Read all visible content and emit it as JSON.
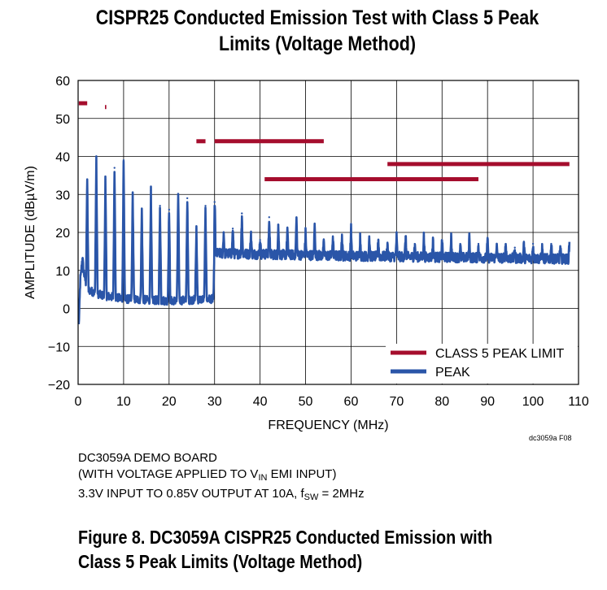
{
  "chart_data": {
    "type": "line",
    "title_line1": "CISPR25 Conducted Emission Test with Class 5 Peak",
    "title_line2": "Limits (Voltage Method)",
    "xlabel": "FREQUENCY (MHz)",
    "ylabel": "AMPLITUDE (dBµV/m)",
    "xlim": [
      0,
      110
    ],
    "ylim": [
      -20,
      60
    ],
    "xticks": [
      0,
      10,
      20,
      30,
      40,
      50,
      60,
      70,
      80,
      90,
      100,
      110
    ],
    "yticks": [
      -20,
      -10,
      0,
      10,
      20,
      30,
      40,
      50,
      60
    ],
    "ytick_labels": [
      "−20",
      "−10",
      "0",
      "10",
      "20",
      "30",
      "40",
      "50",
      "60"
    ],
    "grid": true,
    "legend": "bottom-right",
    "series": [
      {
        "name": "CLASS 5 PEAK LIMIT",
        "color": "#a50d2d",
        "segments": [
          {
            "x": [
              0.15,
              2.0
            ],
            "y": 54
          },
          {
            "x": [
              5.9,
              6.2
            ],
            "y": 53
          },
          {
            "x": [
              26.0,
              28.0
            ],
            "y": 44
          },
          {
            "x": [
              30.0,
              54.0
            ],
            "y": 44
          },
          {
            "x": [
              41.0,
              88.0
            ],
            "y": 34
          },
          {
            "x": [
              68.0,
              108.0
            ],
            "y": 38
          }
        ]
      },
      {
        "name": "PEAK",
        "color": "#2a55a8",
        "baseline": [
          {
            "x": 0.15,
            "y": -4.5
          },
          {
            "x": 0.5,
            "y": 8
          },
          {
            "x": 1.0,
            "y": 11
          },
          {
            "x": 2.0,
            "y": 5
          },
          {
            "x": 5.0,
            "y": 3.5
          },
          {
            "x": 10.0,
            "y": 2.5
          },
          {
            "x": 20.0,
            "y": 2.0
          },
          {
            "x": 29.9,
            "y": 2.5
          },
          {
            "x": 30.1,
            "y": 14.5
          },
          {
            "x": 60.0,
            "y": 13.8
          },
          {
            "x": 108.0,
            "y": 13.0
          }
        ],
        "harmonics": [
          {
            "x": 0.9,
            "y": 13
          },
          {
            "x": 2,
            "y": 34
          },
          {
            "x": 4,
            "y": 40
          },
          {
            "x": 6,
            "y": 34
          },
          {
            "x": 8,
            "y": 37
          },
          {
            "x": 10,
            "y": 39
          },
          {
            "x": 12,
            "y": 30
          },
          {
            "x": 14,
            "y": 26
          },
          {
            "x": 16,
            "y": 31
          },
          {
            "x": 18,
            "y": 27
          },
          {
            "x": 20,
            "y": 26
          },
          {
            "x": 22,
            "y": 30
          },
          {
            "x": 24,
            "y": 29
          },
          {
            "x": 26,
            "y": 21
          },
          {
            "x": 28,
            "y": 27
          },
          {
            "x": 30,
            "y": 28
          },
          {
            "x": 32,
            "y": 20
          },
          {
            "x": 34,
            "y": 21
          },
          {
            "x": 36,
            "y": 25
          },
          {
            "x": 38,
            "y": 20
          },
          {
            "x": 40,
            "y": 18
          },
          {
            "x": 42,
            "y": 24
          },
          {
            "x": 44,
            "y": 22
          },
          {
            "x": 46,
            "y": 21
          },
          {
            "x": 48,
            "y": 24
          },
          {
            "x": 50,
            "y": 20
          },
          {
            "x": 52,
            "y": 22
          },
          {
            "x": 54,
            "y": 17
          },
          {
            "x": 56,
            "y": 19
          },
          {
            "x": 58,
            "y": 19
          },
          {
            "x": 60,
            "y": 21
          },
          {
            "x": 62,
            "y": 19
          },
          {
            "x": 64,
            "y": 19
          },
          {
            "x": 66,
            "y": 18
          },
          {
            "x": 68,
            "y": 17
          },
          {
            "x": 70,
            "y": 19
          },
          {
            "x": 72,
            "y": 19
          },
          {
            "x": 74,
            "y": 17
          },
          {
            "x": 76,
            "y": 19
          },
          {
            "x": 78,
            "y": 18
          },
          {
            "x": 80,
            "y": 18
          },
          {
            "x": 82,
            "y": 19
          },
          {
            "x": 84,
            "y": 17
          },
          {
            "x": 86,
            "y": 19
          },
          {
            "x": 88,
            "y": 17
          },
          {
            "x": 90,
            "y": 18
          },
          {
            "x": 92,
            "y": 17
          },
          {
            "x": 94,
            "y": 17
          },
          {
            "x": 96,
            "y": 16
          },
          {
            "x": 98,
            "y": 17
          },
          {
            "x": 100,
            "y": 17
          },
          {
            "x": 102,
            "y": 16
          },
          {
            "x": 104,
            "y": 17
          },
          {
            "x": 106,
            "y": 16
          },
          {
            "x": 108,
            "y": 17
          }
        ]
      }
    ]
  },
  "figure_code": "dc3059a F08",
  "notes": {
    "line1": "DC3059A DEMO BOARD",
    "line2_prefix": "(WITH VOLTAGE APPLIED TO V",
    "line2_sub": "IN",
    "line2_suffix": " EMI INPUT)",
    "line3_prefix": "3.3V INPUT TO 0.85V OUTPUT AT 10A, f",
    "line3_sub": "SW",
    "line3_suffix": " = 2MHz"
  },
  "caption": {
    "line1": "Figure 8. DC3059A CISPR25 Conducted Emission with",
    "line2": "Class 5 Peak Limits (Voltage Method)"
  }
}
